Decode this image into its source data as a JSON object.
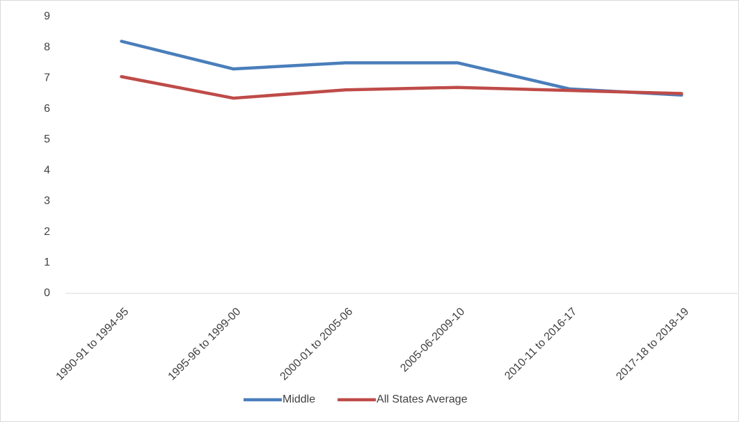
{
  "chart_data": {
    "type": "line",
    "categories": [
      "1990-91 to 1994-95",
      "1995-96 to 1999-00",
      "2000-01 to 2005-06",
      "2005-06-2009-10",
      "2010-11 to 2016-17",
      "2017-18 to 2018-19"
    ],
    "series": [
      {
        "name": "Middle",
        "color": "#4a7ebb",
        "values": [
          8.2,
          7.3,
          7.5,
          7.5,
          6.65,
          6.45
        ]
      },
      {
        "name": "All States Average",
        "color": "#be4b48",
        "values": [
          7.05,
          6.35,
          6.62,
          6.7,
          6.6,
          6.5
        ]
      }
    ],
    "ylim": [
      0,
      9
    ],
    "yticks": [
      0,
      1,
      2,
      3,
      4,
      5,
      6,
      7,
      8,
      9
    ],
    "grid": false,
    "legend": "bottom"
  }
}
